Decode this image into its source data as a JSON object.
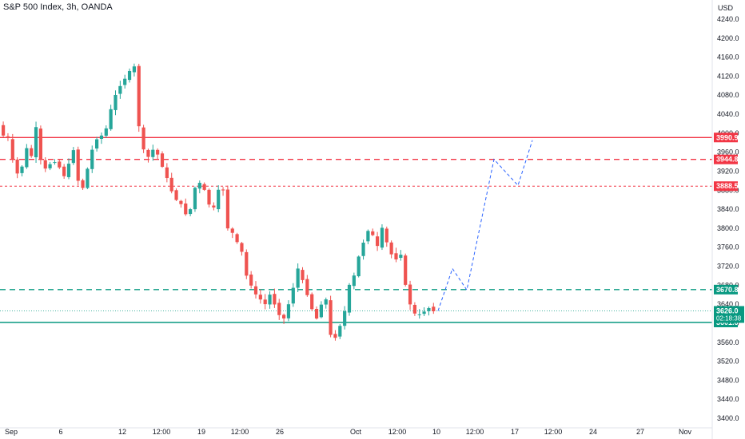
{
  "title": "S&P 500 Index, 3h, OANDA",
  "currency": "USD",
  "colors": {
    "up": "#26a69a",
    "down": "#ef5350",
    "resistance": "#f23645",
    "support": "#089981",
    "projection": "#2962ff",
    "axis_text": "#131722",
    "last_price_bg": "#089981"
  },
  "chart_data": {
    "type": "candlestick",
    "price_axis_ticks": [
      "4240.0",
      "4200.0",
      "4160.0",
      "4120.0",
      "4080.0",
      "4040.0",
      "4000.0",
      "3960.0",
      "3920.0",
      "3880.0",
      "3840.0",
      "3800.0",
      "3760.0",
      "3720.0",
      "3680.0",
      "3640.0",
      "3600.0",
      "3560.0",
      "3520.0",
      "3480.0",
      "3440.0",
      "3400.0"
    ],
    "time_axis_ticks": [
      "Sep",
      "6",
      "12",
      "12:00",
      "19",
      "12:00",
      "26",
      "Oct",
      "12:00",
      "10",
      "12:00",
      "17",
      "12:00",
      "24",
      "27",
      "Nov"
    ],
    "ylim": [
      3400,
      4240
    ],
    "price_levels": [
      {
        "name": "resistance-solid",
        "label": "3990.9",
        "value": 3990.9,
        "style": "solid",
        "color": "#f23645"
      },
      {
        "name": "resistance-dashed",
        "label": "3944.8",
        "value": 3944.8,
        "style": "dashed",
        "color": "#f23645"
      },
      {
        "name": "resistance-dotted",
        "label": "3888.5",
        "value": 3888.5,
        "style": "dotted",
        "color": "#f23645"
      },
      {
        "name": "support-dashed",
        "label": "3670.8",
        "value": 3670.8,
        "style": "dashed",
        "color": "#089981"
      },
      {
        "name": "support-solid",
        "label": "3601.6",
        "value": 3601.6,
        "style": "solid",
        "color": "#089981"
      }
    ],
    "last_price": {
      "label": "3626.0",
      "value": 3626.0,
      "countdown": "02:18:38"
    },
    "price_path": [
      4017,
      3995,
      3990,
      3945,
      3915,
      3930,
      3968,
      3952,
      4012,
      3945,
      3925,
      3935,
      3940,
      3928,
      3910,
      3935,
      3965,
      3900,
      3885,
      3925,
      3965,
      3988,
      3995,
      4010,
      4050,
      4080,
      4100,
      4115,
      4130,
      4140,
      4015,
      3965,
      3950,
      3965,
      3955,
      3930,
      3905,
      3878,
      3860,
      3850,
      3830,
      3840,
      3885,
      3895,
      3880,
      3850,
      3843,
      3880,
      3880,
      3800,
      3790,
      3770,
      3750,
      3700,
      3680,
      3660,
      3650,
      3640,
      3660,
      3640,
      3618,
      3610,
      3640,
      3675,
      3715,
      3690,
      3660,
      3630,
      3610,
      3640,
      3650,
      3575,
      3570,
      3595,
      3625,
      3680,
      3700,
      3740,
      3770,
      3795,
      3785,
      3762,
      3800,
      3770,
      3745,
      3735,
      3745,
      3680,
      3640,
      3620,
      3618,
      3625,
      3632,
      3626
    ],
    "projection_path": [
      3626,
      3715,
      3670,
      3945,
      3890,
      3985
    ]
  }
}
